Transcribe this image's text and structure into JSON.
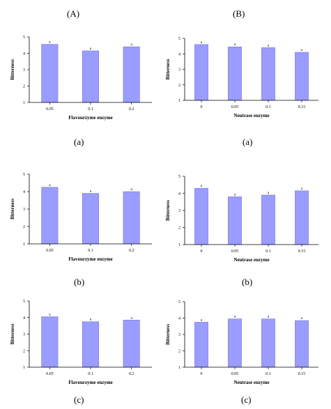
{
  "column_headers": [
    "(A)",
    "(B)"
  ],
  "panel_captions": [
    "(a)",
    "(a)",
    "(b)",
    "(b)",
    "(c)",
    "(c)"
  ],
  "colors": {
    "bar_fill": "#9a9cff",
    "bar_stroke": "#6b6ed0",
    "axis": "#000000"
  },
  "chart_data": [
    {
      "type": "bar",
      "categories": [
        "0.05",
        "0.1",
        "0.2"
      ],
      "values": [
        4.55,
        4.15,
        4.4
      ],
      "labels": [
        "a",
        "a",
        "a"
      ],
      "xlabel": "Flavourzyme enzyme",
      "ylabel": "Bitterness",
      "ylim": [
        1,
        5
      ],
      "yticks": [
        "1",
        "2",
        "3",
        "4",
        "5"
      ],
      "grid": false
    },
    {
      "type": "bar",
      "categories": [
        "0",
        "0.05",
        "0.1",
        "0.15"
      ],
      "values": [
        4.6,
        4.45,
        4.4,
        4.1
      ],
      "labels": [
        "a",
        "a",
        "a",
        "a"
      ],
      "xlabel": "Neutrase enzyme",
      "ylabel": "Bitterness",
      "ylim": [
        1,
        5
      ],
      "yticks": [
        "1",
        "2",
        "3",
        "4",
        "5"
      ],
      "grid": false
    },
    {
      "type": "bar",
      "categories": [
        "0.05",
        "0.1",
        "0.2"
      ],
      "values": [
        4.25,
        3.9,
        4.0
      ],
      "labels": [
        "a",
        "a",
        "a"
      ],
      "xlabel": "Flavourzyme enzyme",
      "ylabel": "Bitterness",
      "ylim": [
        1,
        5
      ],
      "yticks": [
        "1",
        "2",
        "3",
        "4",
        "5"
      ],
      "grid": false
    },
    {
      "type": "bar",
      "categories": [
        "0",
        "0.05",
        "0.1",
        "0.15"
      ],
      "values": [
        4.3,
        3.8,
        3.9,
        4.15
      ],
      "labels": [
        "a",
        "a",
        "a",
        "a"
      ],
      "xlabel": "Neutrase enzyme",
      "ylabel": "Bitterness",
      "ylim": [
        1,
        5
      ],
      "yticks": [
        "1",
        "2",
        "3",
        "4",
        "5"
      ],
      "grid": false
    },
    {
      "type": "bar",
      "categories": [
        "0.05",
        "0.1",
        "0.2"
      ],
      "values": [
        4.05,
        3.75,
        3.85
      ],
      "labels": [
        "a",
        "a",
        "a"
      ],
      "xlabel": "Flavourzyme enzyme",
      "ylabel": "Bitterness",
      "ylim": [
        1,
        5
      ],
      "yticks": [
        "1",
        "2",
        "3",
        "4",
        "5"
      ],
      "grid": false
    },
    {
      "type": "bar",
      "categories": [
        "0",
        "0.05",
        "0.1",
        "0.15"
      ],
      "values": [
        3.75,
        3.95,
        3.95,
        3.85
      ],
      "labels": [
        "a",
        "a",
        "a",
        "a"
      ],
      "xlabel": "Neutrase enzyme",
      "ylabel": "Bitterness",
      "ylim": [
        1,
        5
      ],
      "yticks": [
        "1",
        "2",
        "3",
        "4",
        "5"
      ],
      "grid": false
    }
  ]
}
